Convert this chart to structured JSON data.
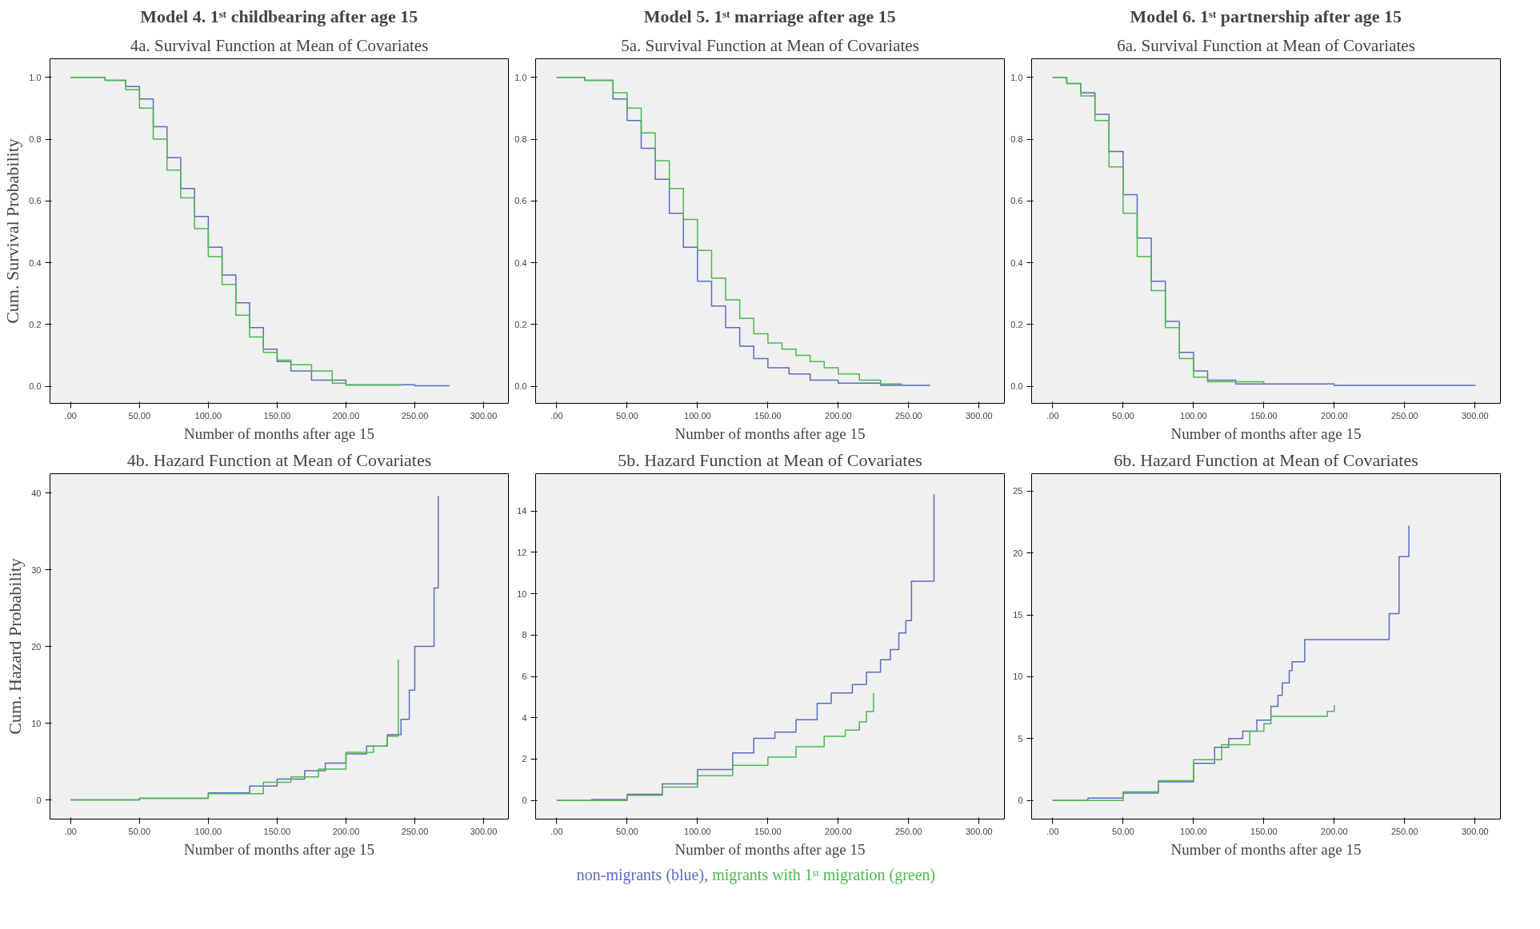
{
  "chart_data": [
    {
      "type": "step",
      "title": "Model 4. 1ˢᵗ childbearing after age 15",
      "subtitle": "4a. Survival Function at Mean of Covariates",
      "xlabel": "Number of months after age 15",
      "ylabel": "Cum. Survival Probability",
      "xlim": [
        -15,
        318
      ],
      "ylim": [
        -0.055,
        1.06
      ],
      "xticks": [
        {
          "value": 0,
          "label": ".00"
        },
        {
          "value": 50,
          "label": "50.00"
        },
        {
          "value": 100,
          "label": "100.00"
        },
        {
          "value": 150,
          "label": "150.00"
        },
        {
          "value": 200,
          "label": "200.00"
        },
        {
          "value": 250,
          "label": "250.00"
        },
        {
          "value": 300,
          "label": "300.00"
        }
      ],
      "yticks": [
        {
          "value": 0,
          "label": "0.0"
        },
        {
          "value": 0.2,
          "label": "0.2"
        },
        {
          "value": 0.4,
          "label": "0.4"
        },
        {
          "value": 0.6,
          "label": "0.6"
        },
        {
          "value": 0.8,
          "label": "0.8"
        },
        {
          "value": 1,
          "label": "1.0"
        }
      ],
      "series": [
        {
          "name": "non-migrants (blue),",
          "color": "#5b6cc0",
          "x": [
            0,
            25,
            40,
            50,
            60,
            70,
            80,
            90,
            100,
            110,
            120,
            130,
            140,
            150,
            160,
            175,
            200,
            250,
            275
          ],
          "values": [
            1,
            0.99,
            0.97,
            0.93,
            0.84,
            0.74,
            0.64,
            0.55,
            0.45,
            0.36,
            0.27,
            0.19,
            0.12,
            0.08,
            0.05,
            0.02,
            0.005,
            0.002,
            0.001
          ]
        },
        {
          "name": "migrants with 1ˢᵗ migration (green)",
          "color": "#4cb84c",
          "x": [
            0,
            25,
            40,
            50,
            60,
            70,
            80,
            90,
            100,
            110,
            120,
            130,
            140,
            150,
            160,
            175,
            190,
            200,
            240
          ],
          "values": [
            1,
            0.99,
            0.96,
            0.9,
            0.8,
            0.7,
            0.61,
            0.51,
            0.42,
            0.33,
            0.23,
            0.16,
            0.11,
            0.085,
            0.07,
            0.05,
            0.01,
            0.004,
            0.002
          ]
        }
      ]
    },
    {
      "type": "step",
      "title": "Model 5. 1ˢᵗ marriage after age 15",
      "subtitle": "5a. Survival Function at Mean of Covariates",
      "xlabel": "Number of months after age 15",
      "xlim": [
        -15,
        318
      ],
      "ylim": [
        -0.055,
        1.06
      ],
      "xticks": [
        {
          "value": 0,
          "label": ".00"
        },
        {
          "value": 50,
          "label": "50.00"
        },
        {
          "value": 100,
          "label": "100.00"
        },
        {
          "value": 150,
          "label": "150.00"
        },
        {
          "value": 200,
          "label": "200.00"
        },
        {
          "value": 250,
          "label": "250.00"
        },
        {
          "value": 300,
          "label": "300.00"
        }
      ],
      "yticks": [
        {
          "value": 0,
          "label": "0.0"
        },
        {
          "value": 0.2,
          "label": "0.2"
        },
        {
          "value": 0.4,
          "label": "0.4"
        },
        {
          "value": 0.6,
          "label": "0.6"
        },
        {
          "value": 0.8,
          "label": "0.8"
        },
        {
          "value": 1,
          "label": "1.0"
        }
      ],
      "series": [
        {
          "color": "#5b6cc0",
          "x": [
            0,
            20,
            40,
            50,
            60,
            70,
            80,
            90,
            100,
            110,
            120,
            130,
            140,
            150,
            165,
            180,
            200,
            230,
            265
          ],
          "values": [
            1,
            0.99,
            0.93,
            0.86,
            0.77,
            0.67,
            0.56,
            0.45,
            0.34,
            0.26,
            0.19,
            0.13,
            0.09,
            0.06,
            0.04,
            0.02,
            0.01,
            0.003,
            0.001
          ]
        },
        {
          "color": "#4cb84c",
          "x": [
            0,
            20,
            40,
            50,
            60,
            70,
            80,
            90,
            100,
            110,
            120,
            130,
            140,
            150,
            160,
            170,
            180,
            190,
            200,
            215,
            230,
            245
          ],
          "values": [
            1,
            0.99,
            0.95,
            0.9,
            0.82,
            0.73,
            0.64,
            0.54,
            0.44,
            0.35,
            0.28,
            0.22,
            0.17,
            0.14,
            0.12,
            0.1,
            0.08,
            0.06,
            0.04,
            0.02,
            0.008,
            0.003
          ]
        }
      ]
    },
    {
      "type": "step",
      "title": "Model 6. 1ˢᵗ partnership after age 15",
      "subtitle": "6a. Survival Function at Mean of Covariates",
      "xlabel": "Number of months after age 15",
      "xlim": [
        -15,
        318
      ],
      "ylim": [
        -0.055,
        1.06
      ],
      "xticks": [
        {
          "value": 0,
          "label": ".00"
        },
        {
          "value": 50,
          "label": "50.00"
        },
        {
          "value": 100,
          "label": "100.00"
        },
        {
          "value": 150,
          "label": "150.00"
        },
        {
          "value": 200,
          "label": "200.00"
        },
        {
          "value": 250,
          "label": "250.00"
        },
        {
          "value": 300,
          "label": "300.00"
        }
      ],
      "yticks": [
        {
          "value": 0,
          "label": "0.0"
        },
        {
          "value": 0.2,
          "label": "0.2"
        },
        {
          "value": 0.4,
          "label": "0.4"
        },
        {
          "value": 0.6,
          "label": "0.6"
        },
        {
          "value": 0.8,
          "label": "0.8"
        },
        {
          "value": 1,
          "label": "1.0"
        }
      ],
      "series": [
        {
          "color": "#5b6cc0",
          "x": [
            0,
            10,
            20,
            30,
            40,
            50,
            60,
            70,
            80,
            90,
            100,
            110,
            130,
            200,
            300
          ],
          "values": [
            1,
            0.98,
            0.95,
            0.88,
            0.76,
            0.62,
            0.48,
            0.34,
            0.21,
            0.11,
            0.05,
            0.02,
            0.008,
            0.003,
            0.002
          ]
        },
        {
          "color": "#4cb84c",
          "x": [
            0,
            10,
            20,
            30,
            40,
            50,
            60,
            70,
            80,
            90,
            100,
            110,
            150
          ],
          "values": [
            1,
            0.98,
            0.94,
            0.86,
            0.71,
            0.56,
            0.42,
            0.31,
            0.19,
            0.09,
            0.03,
            0.015,
            0.005
          ]
        }
      ]
    },
    {
      "type": "step",
      "title": "4b. Hazard Function at Mean of Covariates",
      "xlabel": "Number of months after age 15",
      "ylabel": "Cum. Hazard Probability",
      "xlim": [
        -15,
        318
      ],
      "ylim": [
        -2.5,
        42.5
      ],
      "xticks": [
        {
          "value": 0,
          "label": ".00"
        },
        {
          "value": 50,
          "label": "50.00"
        },
        {
          "value": 100,
          "label": "100.00"
        },
        {
          "value": 150,
          "label": "150.00"
        },
        {
          "value": 200,
          "label": "200.00"
        },
        {
          "value": 250,
          "label": "250.00"
        },
        {
          "value": 300,
          "label": "300.00"
        }
      ],
      "yticks": [
        0,
        10,
        20,
        30,
        40
      ],
      "series": [
        {
          "color": "#5b6cc0",
          "x": [
            0,
            50,
            100,
            130,
            150,
            170,
            185,
            200,
            215,
            230,
            240,
            246,
            250,
            264,
            267
          ],
          "values": [
            0,
            0.2,
            0.9,
            1.8,
            2.7,
            3.8,
            4.8,
            6,
            7,
            8.5,
            10.5,
            14.3,
            20,
            27.6,
            39.6
          ]
        },
        {
          "color": "#4cb84c",
          "x": [
            0,
            50,
            100,
            140,
            160,
            180,
            200,
            220,
            230,
            238
          ],
          "values": [
            0,
            0.2,
            0.8,
            2.3,
            3,
            4,
            6.2,
            7,
            8.3,
            18.3
          ]
        }
      ]
    },
    {
      "type": "step",
      "title": "5b. Hazard Function at Mean of Covariates",
      "xlabel": "Number of months after age 15",
      "xlim": [
        -15,
        318
      ],
      "ylim": [
        -0.9,
        15.8
      ],
      "xticks": [
        {
          "value": 0,
          "label": ".00"
        },
        {
          "value": 50,
          "label": "50.00"
        },
        {
          "value": 100,
          "label": "100.00"
        },
        {
          "value": 150,
          "label": "150.00"
        },
        {
          "value": 200,
          "label": "200.00"
        },
        {
          "value": 250,
          "label": "250.00"
        },
        {
          "value": 300,
          "label": "300.00"
        }
      ],
      "yticks": [
        0,
        2,
        4,
        6,
        8,
        10,
        12,
        14
      ],
      "series": [
        {
          "color": "#5b6cc0",
          "x": [
            0,
            25,
            50,
            75,
            100,
            125,
            140,
            155,
            170,
            185,
            195,
            210,
            220,
            230,
            237,
            243,
            248,
            252,
            268
          ],
          "values": [
            0,
            0.05,
            0.3,
            0.8,
            1.5,
            2.3,
            3,
            3.3,
            3.9,
            4.7,
            5.2,
            5.6,
            6.2,
            6.8,
            7.3,
            8.1,
            8.7,
            10.6,
            14.8
          ]
        },
        {
          "color": "#4cb84c",
          "x": [
            0,
            50,
            75,
            100,
            125,
            150,
            170,
            190,
            205,
            215,
            220,
            225
          ],
          "values": [
            0,
            0.25,
            0.65,
            1.2,
            1.7,
            2.1,
            2.6,
            3.1,
            3.4,
            3.8,
            4.3,
            5.2
          ]
        }
      ]
    },
    {
      "type": "step",
      "title": "6b. Hazard Function at Mean of Covariates",
      "xlabel": "Number of months after age 15",
      "xlim": [
        -15,
        318
      ],
      "ylim": [
        -1.5,
        26.4
      ],
      "xticks": [
        {
          "value": 0,
          "label": ".00"
        },
        {
          "value": 50,
          "label": "50.00"
        },
        {
          "value": 100,
          "label": "100.00"
        },
        {
          "value": 150,
          "label": "150.00"
        },
        {
          "value": 200,
          "label": "200.00"
        },
        {
          "value": 250,
          "label": "250.00"
        },
        {
          "value": 300,
          "label": "300.00"
        }
      ],
      "yticks": [
        0,
        5,
        10,
        15,
        20,
        25
      ],
      "series": [
        {
          "color": "#5b6cc0",
          "x": [
            0,
            25,
            50,
            75,
            100,
            115,
            125,
            135,
            145,
            150,
            155,
            160,
            163,
            168,
            170,
            179,
            239,
            246,
            253
          ],
          "values": [
            0,
            0.2,
            0.6,
            1.5,
            3,
            4.3,
            5,
            5.6,
            6.5,
            6.5,
            7.6,
            8.5,
            9.5,
            10.5,
            11.2,
            13,
            15.1,
            19.7,
            22.2
          ]
        },
        {
          "color": "#4cb84c",
          "x": [
            0,
            50,
            75,
            100,
            120,
            140,
            150,
            155,
            185,
            195,
            200
          ],
          "values": [
            0,
            0.7,
            1.6,
            3.3,
            4.5,
            5.6,
            6.2,
            6.8,
            6.8,
            7.2,
            7.7
          ]
        }
      ]
    }
  ]
}
